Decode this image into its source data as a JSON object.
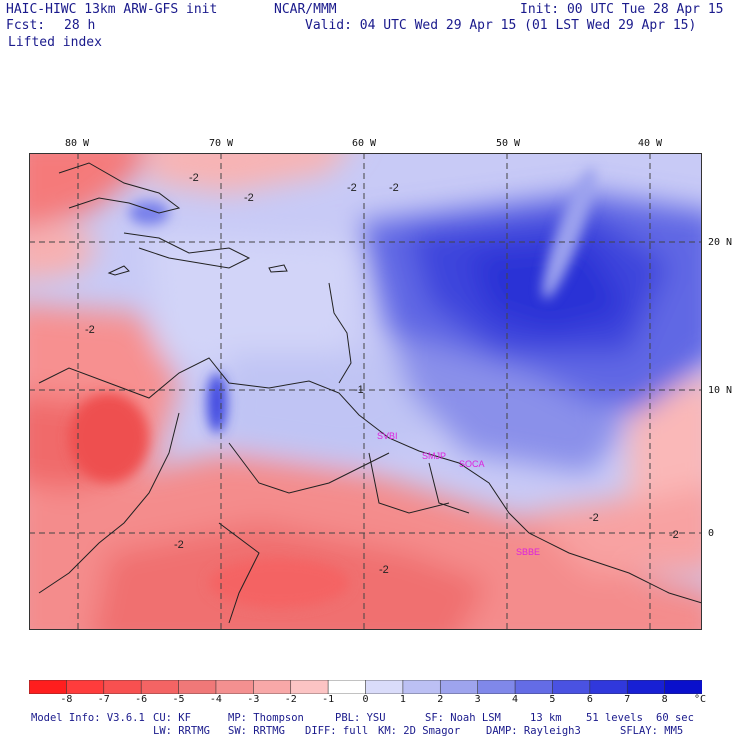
{
  "header": {
    "model": "HAIC-HIWC 13km ARW-GFS init",
    "center": "NCAR/MMM",
    "init": "Init: 00 UTC Tue 28 Apr 15",
    "fcst_label": "Fcst:",
    "fcst_value": "28 h",
    "valid": "Valid: 04 UTC Wed 29 Apr 15 (01 LST Wed 29 Apr 15)",
    "field": "Lifted index"
  },
  "map": {
    "lon_labels": [
      "80 W",
      "70 W",
      "60 W",
      "50 W",
      "40 W"
    ],
    "lon_values": [
      -80,
      -70,
      -60,
      -50,
      -40
    ],
    "lat_labels": [
      "20 N",
      "10 N",
      "0"
    ],
    "lat_values": [
      20,
      10,
      0
    ],
    "contour_labels": [
      "-2",
      "-1"
    ],
    "stations": [
      "SVBI",
      "SMJP",
      "SOCA",
      "SBBE"
    ],
    "colors": {
      "frame": "#333333",
      "grid": "#444444",
      "coast": "#222222",
      "station": "#dd22dd"
    }
  },
  "colorbar": {
    "labels": [
      "-8",
      "-7",
      "-6",
      "-5",
      "-4",
      "-3",
      "-2",
      "-1",
      "0",
      "1",
      "2",
      "3",
      "4",
      "5",
      "6",
      "7",
      "8"
    ],
    "unit": "°C",
    "colors": [
      "#ff1e1e",
      "#ff3c3c",
      "#f85050",
      "#f46464",
      "#f07878",
      "#f49090",
      "#f8a8a8",
      "#fcc4c4",
      "#ffffff",
      "#dadcfa",
      "#bcc0f4",
      "#9ea4ee",
      "#8088ea",
      "#646ce6",
      "#4a52e2",
      "#3038dc",
      "#1820d4",
      "#0a10cc"
    ]
  },
  "footer": {
    "line1": [
      "Model Info: V3.6.1",
      "CU: KF",
      "MP: Thompson",
      "PBL: YSU",
      "SF: Noah LSM",
      "13 km",
      "51 levels",
      "60 sec"
    ],
    "line2": [
      "LW: RRTMG",
      "SW: RRTMG",
      "DIFF: full",
      "KM: 2D Smagor",
      "DAMP: Rayleigh3",
      "SFLAY: MM5"
    ]
  }
}
